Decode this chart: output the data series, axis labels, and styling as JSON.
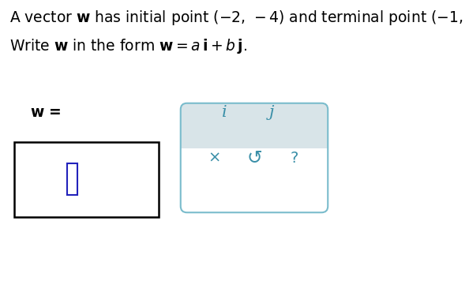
{
  "background_color": "#ffffff",
  "key_color": "#3a8fa8",
  "input_cursor_color": "#2222bb",
  "keyboard_border_color": "#7abccc",
  "keyboard_bg_bottom": "#d8e4e8",
  "font_size_main": 13.5,
  "font_size_keys": 15
}
